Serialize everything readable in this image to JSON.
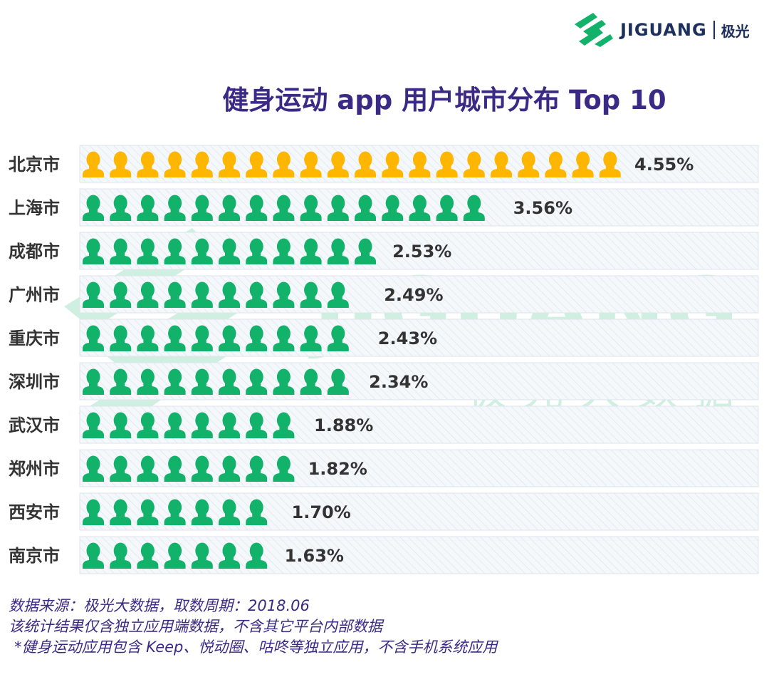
{
  "brand": {
    "name": "JIGUANG",
    "cn_name": "极光",
    "color": "#1d2f5c",
    "accent": "#13b26b"
  },
  "watermark": {
    "text": "JIGUANG",
    "subtext": "极光大数据"
  },
  "chart_data": {
    "type": "bar",
    "style": "pictograph",
    "icon": "person-icon",
    "title": "健身运动 app 用户城市分布 Top 10",
    "categories": [
      "北京市",
      "上海市",
      "成都市",
      "广州市",
      "重庆市",
      "深圳市",
      "武汉市",
      "郑州市",
      "西安市",
      "南京市"
    ],
    "values": [
      4.55,
      3.56,
      2.53,
      2.49,
      2.43,
      2.34,
      1.88,
      1.82,
      1.7,
      1.63
    ],
    "labels": [
      "4.55%",
      "3.56%",
      "2.53%",
      "2.49%",
      "2.43%",
      "2.34%",
      "1.88%",
      "1.82%",
      "1.70%",
      "1.63%"
    ],
    "unit": "%",
    "highlight_color": "#ffb600",
    "color": "#13b26b"
  },
  "footer": {
    "line1": "数据来源：极光大数据，取数周期：2018.06",
    "line2": "该统计结果仅含独立应用端数据，不含其它平台内部数据",
    "line3": "*健身运动应用包含 Keep、悦动圈、咕咚等独立应用，不含手机系统应用"
  }
}
